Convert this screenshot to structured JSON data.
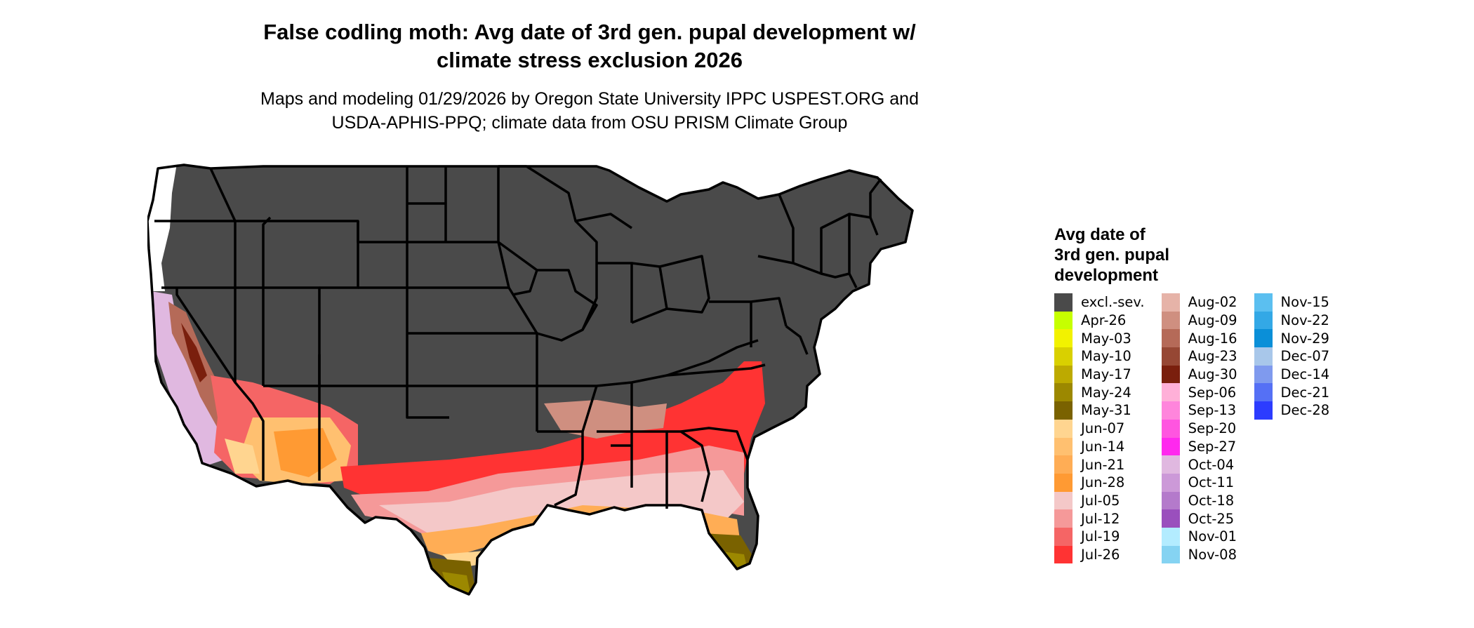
{
  "title_line1": "False codling moth: Avg date of 3rd gen. pupal development w/",
  "title_line2": "climate stress exclusion 2026",
  "subtitle_line1": "Maps and modeling 01/29/2026 by Oregon State University IPPC USPEST.ORG and",
  "subtitle_line2": "USDA-APHIS-PPQ; climate data from OSU PRISM Climate Group",
  "legend": {
    "title_line1": "Avg date of",
    "title_line2": "3rd gen. pupal",
    "title_line3": "development",
    "columns": [
      [
        {
          "label": "excl.-sev.",
          "color": "#4a4a4a"
        },
        {
          "label": "Apr-26",
          "color": "#c6ff00"
        },
        {
          "label": "May-03",
          "color": "#f2f200"
        },
        {
          "label": "May-10",
          "color": "#d9d000"
        },
        {
          "label": "May-17",
          "color": "#bdaa00"
        },
        {
          "label": "May-24",
          "color": "#9c8800"
        },
        {
          "label": "May-31",
          "color": "#7a6200"
        },
        {
          "label": "Jun-07",
          "color": "#ffd590"
        },
        {
          "label": "Jun-14",
          "color": "#ffc070"
        },
        {
          "label": "Jun-21",
          "color": "#ffad55"
        },
        {
          "label": "Jun-28",
          "color": "#ff9a33"
        },
        {
          "label": "Jul-05",
          "color": "#f4c8c8"
        },
        {
          "label": "Jul-12",
          "color": "#f59999"
        },
        {
          "label": "Jul-19",
          "color": "#f56565"
        },
        {
          "label": "Jul-26",
          "color": "#ff3333"
        }
      ],
      [
        {
          "label": "Aug-02",
          "color": "#e6b3a8"
        },
        {
          "label": "Aug-09",
          "color": "#cf8f80"
        },
        {
          "label": "Aug-16",
          "color": "#b56a58"
        },
        {
          "label": "Aug-23",
          "color": "#964734"
        },
        {
          "label": "Aug-30",
          "color": "#7a1f0d"
        },
        {
          "label": "Sep-06",
          "color": "#ffb0d8"
        },
        {
          "label": "Sep-13",
          "color": "#ff85dc"
        },
        {
          "label": "Sep-20",
          "color": "#ff55e0"
        },
        {
          "label": "Sep-27",
          "color": "#ff28ee"
        },
        {
          "label": "Oct-04",
          "color": "#e0b8e0"
        },
        {
          "label": "Oct-11",
          "color": "#cc99d8"
        },
        {
          "label": "Oct-18",
          "color": "#b47acb"
        },
        {
          "label": "Oct-25",
          "color": "#9a4fbd"
        },
        {
          "label": "Nov-01",
          "color": "#b3ecff"
        },
        {
          "label": "Nov-08",
          "color": "#85d3f2"
        }
      ],
      [
        {
          "label": "Nov-15",
          "color": "#5bbff0"
        },
        {
          "label": "Nov-22",
          "color": "#33a8e6"
        },
        {
          "label": "Nov-29",
          "color": "#0a8fd8"
        },
        {
          "label": "Dec-07",
          "color": "#a8c7ea"
        },
        {
          "label": "Dec-14",
          "color": "#7f9aee"
        },
        {
          "label": "Dec-21",
          "color": "#5570f5"
        },
        {
          "label": "Dec-28",
          "color": "#2c3cff"
        }
      ]
    ]
  }
}
